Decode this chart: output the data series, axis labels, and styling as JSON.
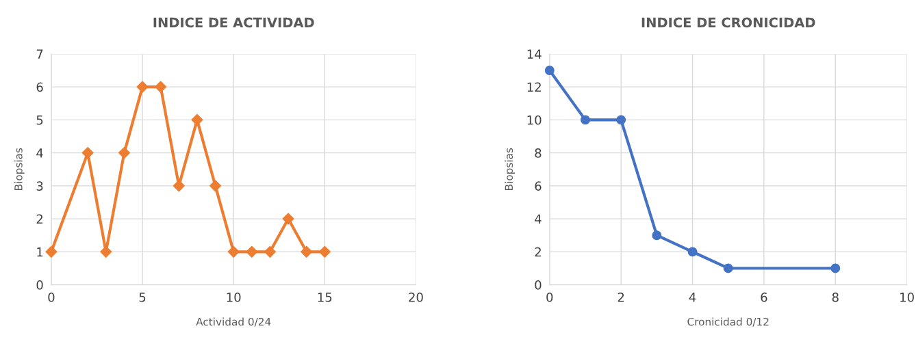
{
  "chart_data": [
    {
      "type": "line",
      "title": "INDICE DE ACTIVIDAD",
      "xlabel": "Actividad 0/24",
      "ylabel": "Biopsias",
      "x": [
        0,
        2,
        3,
        4,
        5,
        6,
        7,
        8,
        9,
        10,
        11,
        12,
        13,
        14,
        15
      ],
      "series": [
        {
          "color": "#ed7d31",
          "values": [
            1,
            4,
            1,
            4,
            6,
            6,
            3,
            5,
            3,
            1,
            1,
            1,
            2,
            1,
            1
          ]
        }
      ],
      "xlim": [
        0,
        20
      ],
      "xticks": [
        0,
        5,
        10,
        15,
        20
      ],
      "ylim": [
        0,
        7
      ],
      "yticks": [
        0,
        1,
        2,
        3,
        4,
        5,
        6,
        7
      ],
      "grid": true,
      "marker": "diamond",
      "line_style": "solid"
    },
    {
      "type": "line",
      "title": "INDICE DE CRONICIDAD",
      "xlabel": "Cronicidad 0/12",
      "ylabel": "Biopsias",
      "x": [
        0,
        1,
        2,
        3,
        4,
        5,
        8
      ],
      "series": [
        {
          "color": "#4472c4",
          "values": [
            13,
            10,
            10,
            3,
            2,
            1,
            1
          ]
        }
      ],
      "xlim": [
        0,
        10
      ],
      "xticks": [
        0,
        2,
        4,
        6,
        8,
        10
      ],
      "ylim": [
        0,
        14
      ],
      "yticks": [
        0,
        2,
        4,
        6,
        8,
        10,
        12,
        14
      ],
      "grid": true,
      "marker": "circle",
      "line_style": "solid"
    }
  ]
}
